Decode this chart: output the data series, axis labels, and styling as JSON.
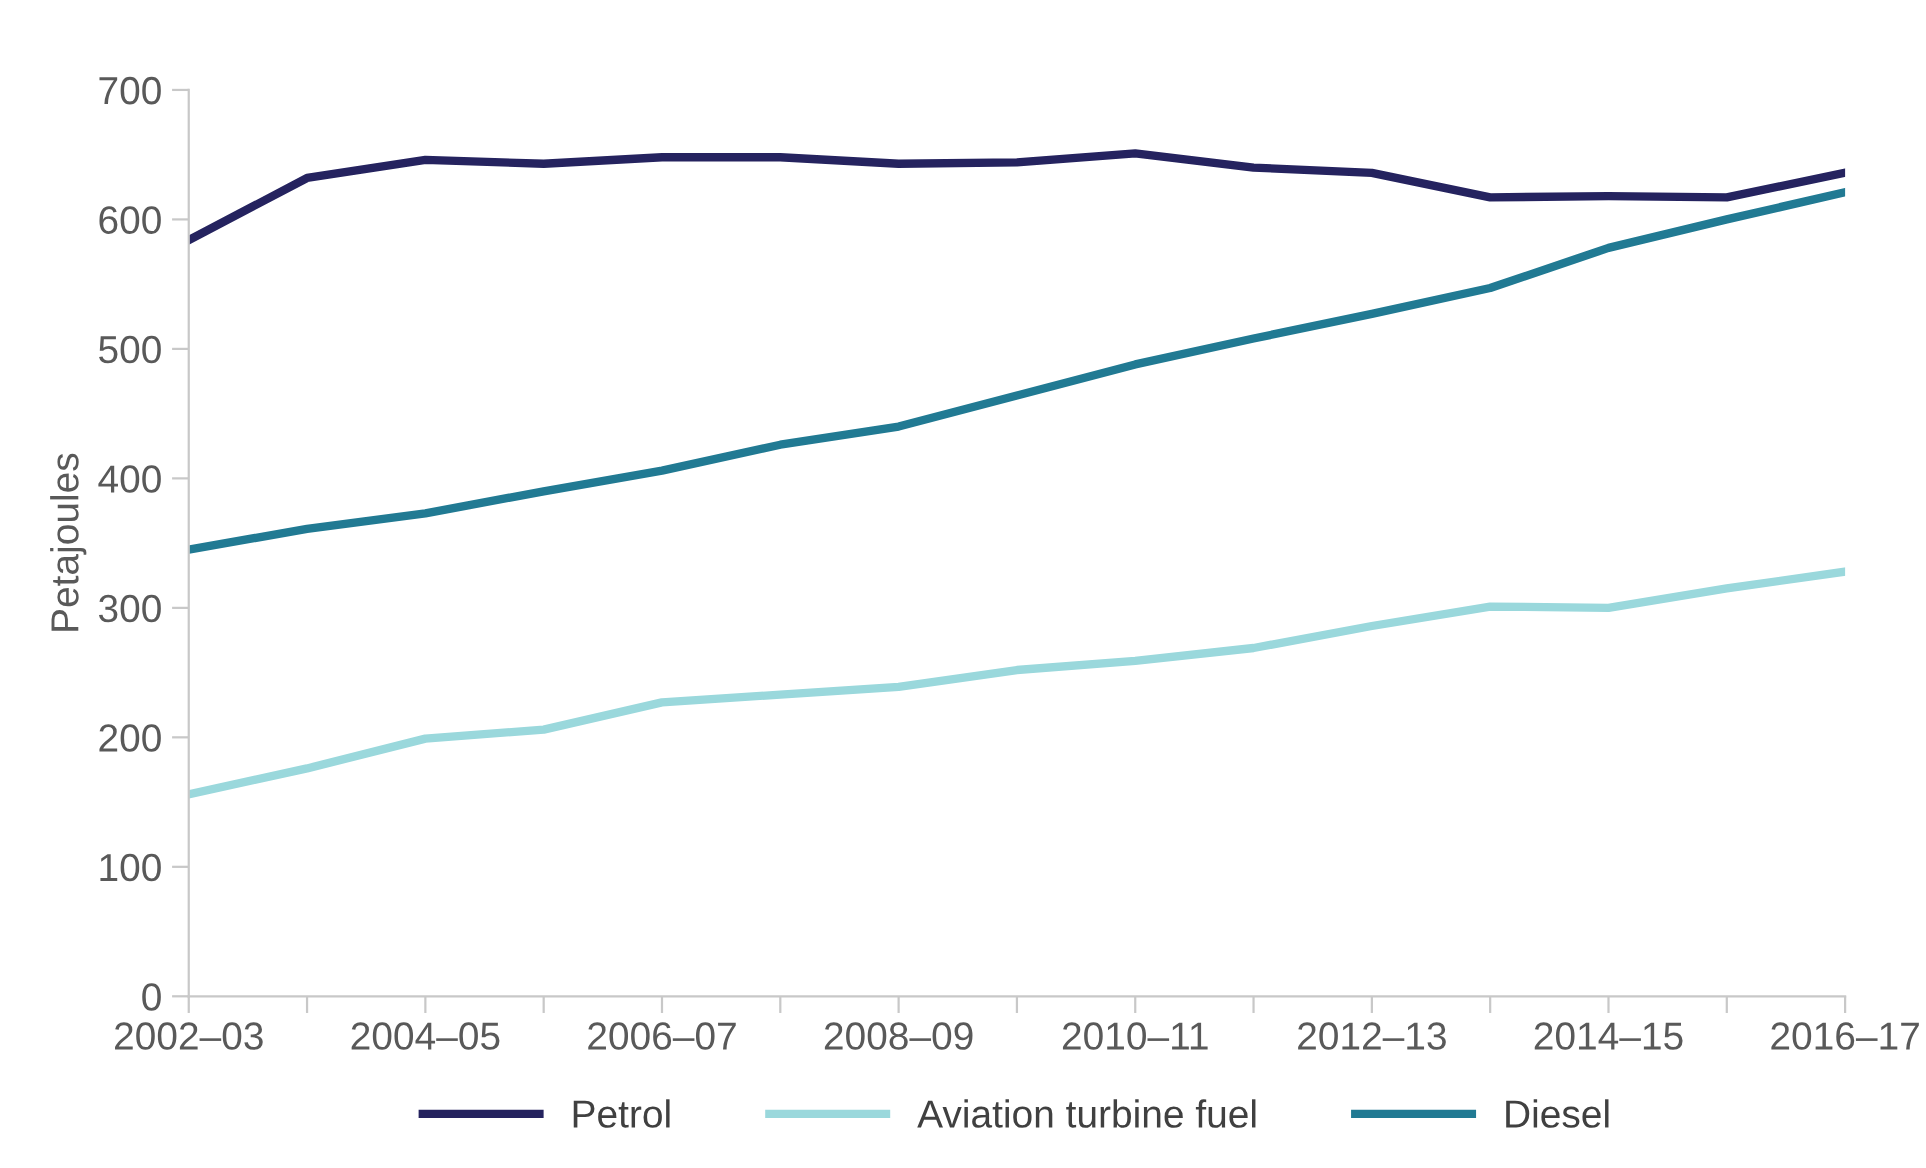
{
  "chart_data": {
    "type": "line",
    "ylabel": "Petajoules",
    "categories": [
      "2002–03",
      null,
      "2004–05",
      null,
      "2006–07",
      null,
      "2008–09",
      null,
      "2010–11",
      null,
      "2012–13",
      null,
      "2014–15",
      null,
      "2016–17"
    ],
    "series": [
      {
        "name": "Petrol",
        "color": "#25235f",
        "values": [
          584,
          632,
          646,
          643,
          648,
          648,
          643,
          644,
          651,
          640,
          636,
          617,
          618,
          617,
          636
        ]
      },
      {
        "name": "Aviation turbine fuel",
        "color": "#9ad8dc",
        "values": [
          156,
          176,
          199,
          206,
          227,
          233,
          239,
          252,
          259,
          269,
          286,
          301,
          300,
          315,
          328
        ]
      },
      {
        "name": "Diesel",
        "color": "#217a93",
        "values": [
          345,
          361,
          373,
          390,
          406,
          426,
          440,
          464,
          488,
          508,
          527,
          547,
          578,
          600,
          621
        ]
      }
    ],
    "ylim": [
      0,
      700
    ],
    "yticks": [
      0,
      100,
      200,
      300,
      400,
      500,
      600,
      700
    ],
    "grid": false,
    "legend": "bottom",
    "marker": "none",
    "line_style": "solid"
  }
}
